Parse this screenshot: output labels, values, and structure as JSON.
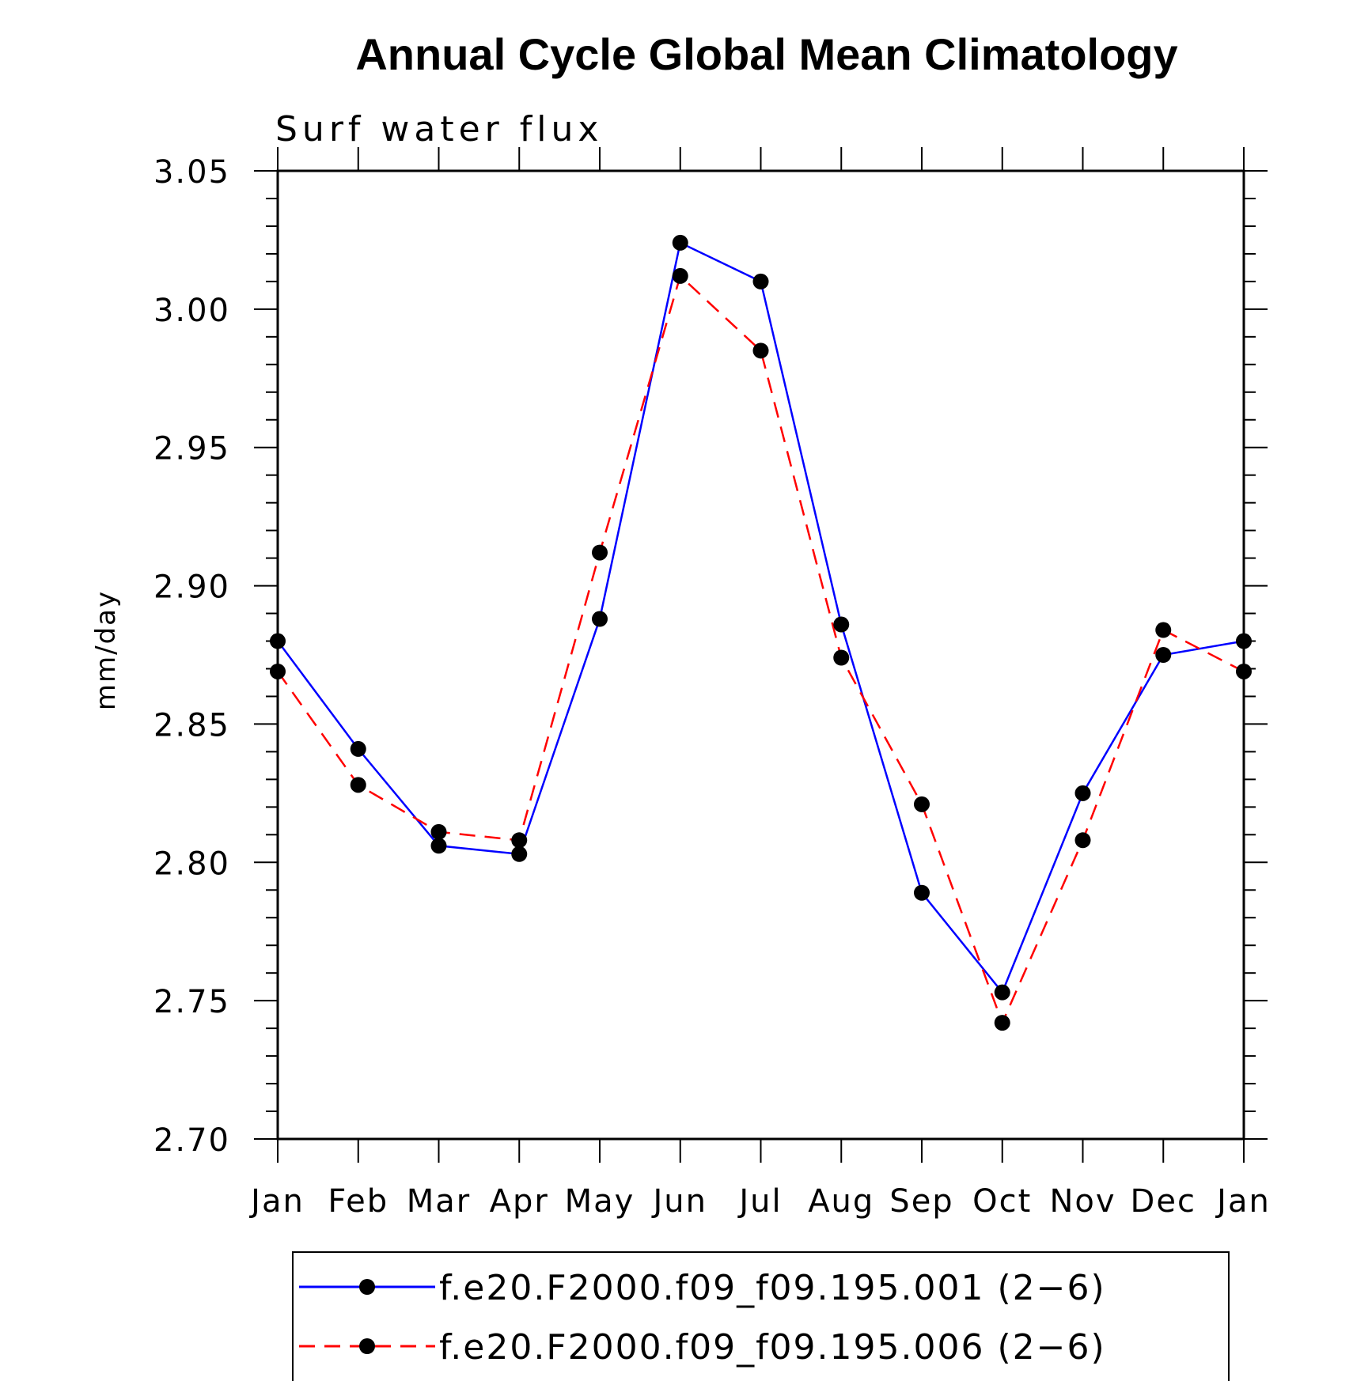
{
  "chart_data": {
    "type": "line",
    "title": "Annual Cycle Global Mean Climatology",
    "subtitle": "Surf water flux",
    "xlabel": "",
    "ylabel": "mm/day",
    "categories": [
      "Jan",
      "Feb",
      "Mar",
      "Apr",
      "May",
      "Jun",
      "Jul",
      "Aug",
      "Sep",
      "Oct",
      "Nov",
      "Dec",
      "Jan"
    ],
    "ylim": [
      2.7,
      3.05
    ],
    "yticks": [
      "2.70",
      "2.75",
      "2.80",
      "2.85",
      "2.90",
      "2.95",
      "3.00",
      "3.05"
    ],
    "grid": false,
    "legend_position": "bottom",
    "series": [
      {
        "name": "f.e20.F2000.f09_f09.195.001 (2−6)",
        "color": "#0000ff",
        "line_style": "solid",
        "marker": "filled-circle",
        "values": [
          2.88,
          2.841,
          2.806,
          2.803,
          2.888,
          3.024,
          3.01,
          2.886,
          2.789,
          2.753,
          2.825,
          2.875,
          2.88
        ]
      },
      {
        "name": "f.e20.F2000.f09_f09.195.006 (2−6)",
        "color": "#ff0000",
        "line_style": "dashed",
        "marker": "filled-circle",
        "values": [
          2.869,
          2.828,
          2.811,
          2.808,
          2.912,
          3.012,
          2.985,
          2.874,
          2.821,
          2.742,
          2.808,
          2.884,
          2.869
        ]
      }
    ]
  }
}
